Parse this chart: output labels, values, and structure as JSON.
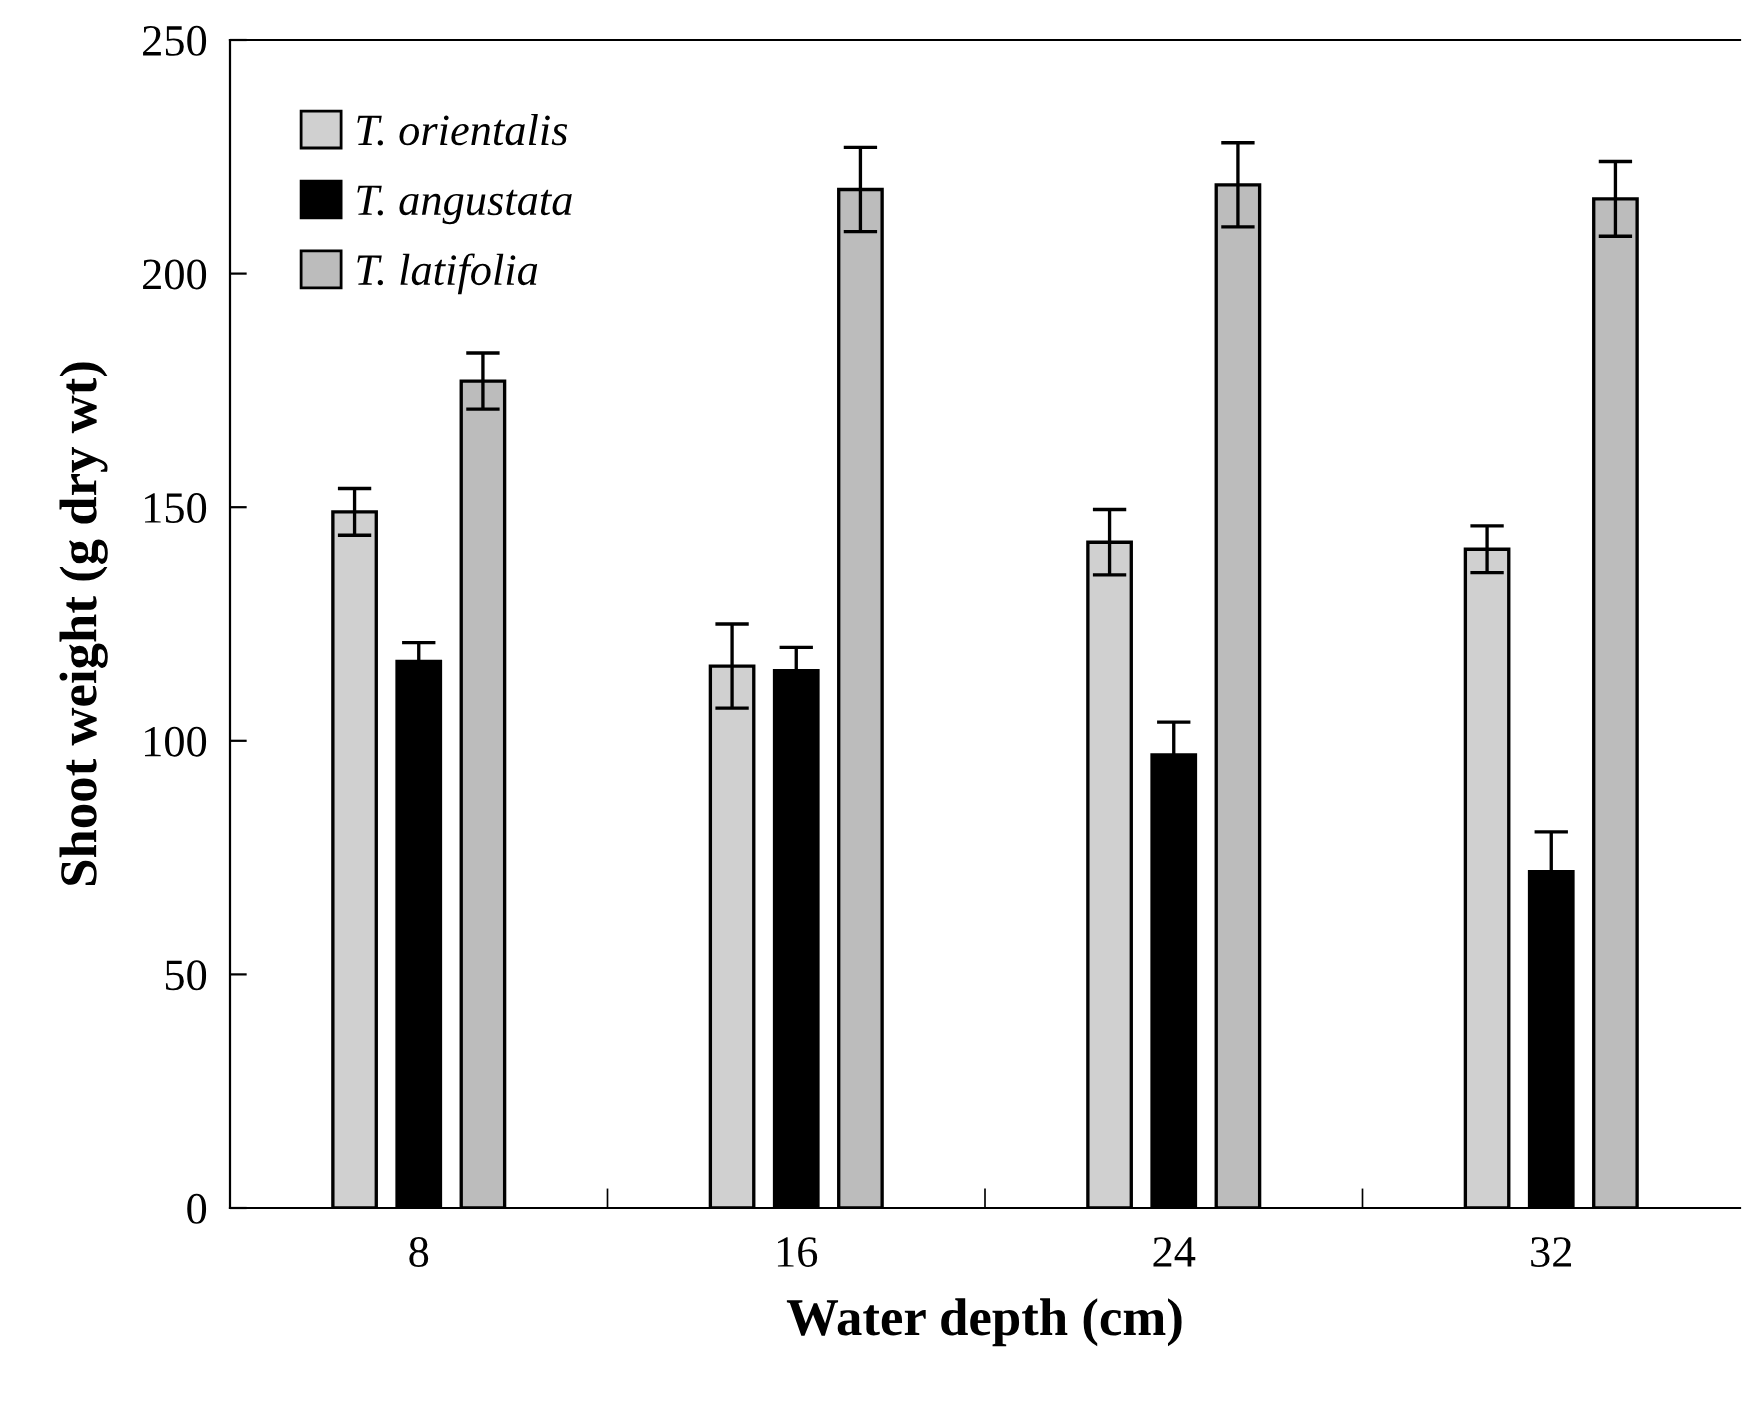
{
  "chart_data": {
    "type": "bar",
    "xlabel": "Water depth (cm)",
    "ylabel": "Shoot weight (g dry wt)",
    "categories": [
      "8",
      "16",
      "24",
      "32"
    ],
    "series": [
      {
        "name": "T. orientalis",
        "color": "#d0d0d0",
        "values": [
          149,
          116,
          142.5,
          141
        ],
        "errors": [
          5,
          9,
          7,
          5
        ]
      },
      {
        "name": "T. angustata",
        "color": "#000000",
        "values": [
          117,
          115,
          97,
          72
        ],
        "errors": [
          4,
          5,
          7,
          8.5
        ]
      },
      {
        "name": "T. latifolia",
        "color": "#bcbcbc",
        "values": [
          177,
          218,
          219,
          216
        ],
        "errors": [
          6,
          9,
          9,
          8
        ]
      }
    ],
    "ylim": [
      0,
      250
    ],
    "yticks": [
      0,
      50,
      100,
      150,
      200,
      250
    ],
    "grid": false,
    "legend": "top left"
  }
}
